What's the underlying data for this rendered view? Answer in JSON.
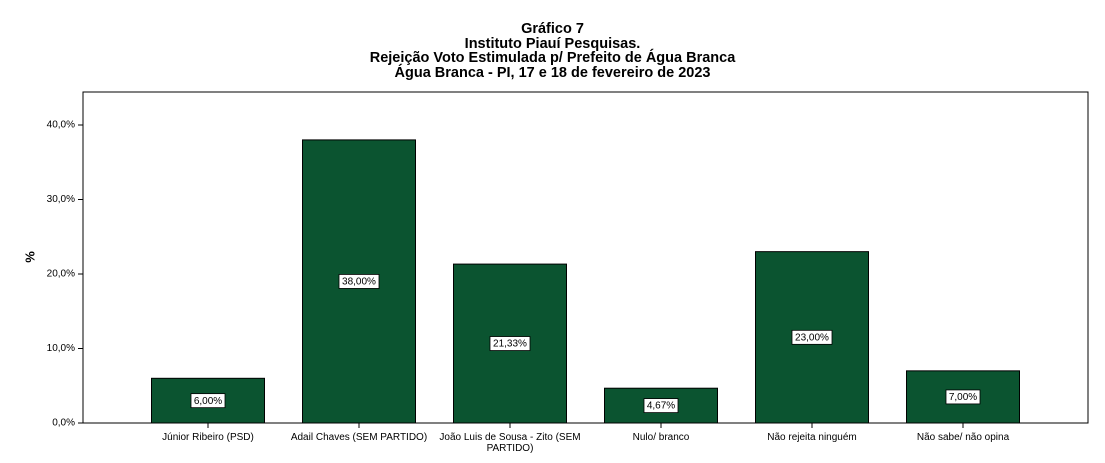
{
  "title_lines": [
    "Gráfico 7",
    "Instituto Piauí Pesquisas.",
    "Rejeição Voto Estimulada p/ Prefeito de Água Branca",
    "Água Branca - PI, 17 e 18 de fevereiro de 2023"
  ],
  "chart_data": {
    "type": "bar",
    "title": "Gráfico 7 — Instituto Piauí Pesquisas. Rejeição Voto Estimulada p/ Prefeito de Água Branca — Água Branca - PI, 17 e 18 de fevereiro de 2023",
    "ylabel": "%",
    "xlabel": "",
    "ylim": [
      0,
      45
    ],
    "yticks": [
      0,
      10,
      20,
      30,
      40
    ],
    "ytick_labels": [
      "0,0%",
      "10,0%",
      "20,0%",
      "30,0%",
      "40,0%"
    ],
    "categories": [
      [
        "Júnior Ribeiro (PSD)"
      ],
      [
        "Adail Chaves (SEM PARTIDO)"
      ],
      [
        "João Luis de Sousa - Zito (SEM",
        "PARTIDO)"
      ],
      [
        "Nulo/ branco"
      ],
      [
        "Não rejeita ninguém"
      ],
      [
        "Não sabe/ não opina"
      ]
    ],
    "values": [
      6.0,
      38.0,
      21.33,
      4.67,
      23.0,
      7.0
    ],
    "value_labels": [
      "6,00%",
      "38,00%",
      "21,33%",
      "4,67%",
      "23,00%",
      "7,00%"
    ],
    "bar_color": "#0b5430",
    "grid": false,
    "legend": "none"
  }
}
